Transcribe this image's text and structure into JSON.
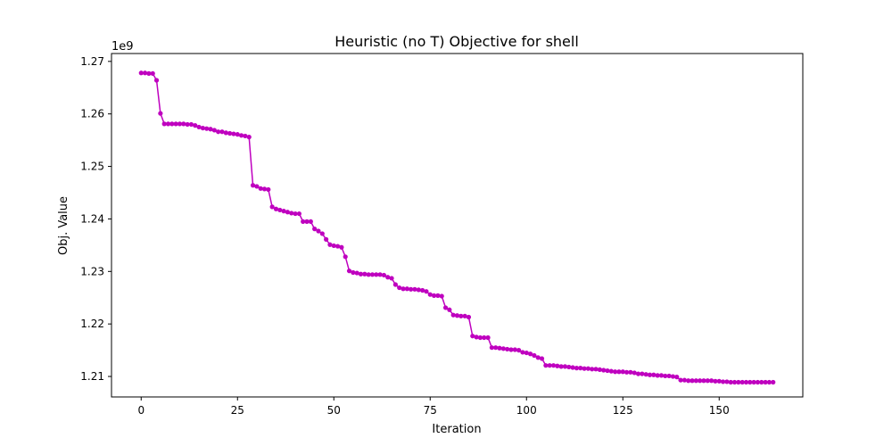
{
  "chart_data": {
    "type": "line",
    "title": "Heuristic (no T) Objective for shell",
    "xlabel": "Iteration",
    "ylabel": "Obj. Value",
    "offset_text": "1e9",
    "xlim": [
      -7.7,
      171.7
    ],
    "ylim": [
      1.2061,
      1.2715
    ],
    "xticks": [
      0,
      25,
      50,
      75,
      100,
      125,
      150
    ],
    "xtick_labels": [
      "0",
      "25",
      "50",
      "75",
      "100",
      "125",
      "150"
    ],
    "yticks": [
      1.21,
      1.22,
      1.23,
      1.24,
      1.25,
      1.26,
      1.27
    ],
    "ytick_labels": [
      "1.21",
      "1.22",
      "1.23",
      "1.24",
      "1.25",
      "1.26",
      "1.27"
    ],
    "grid": false,
    "color": "#bf00bf",
    "marker": "circle",
    "series": [
      {
        "values": [
          1.2678,
          1.2678,
          1.2677,
          1.2677,
          1.2664,
          1.2601,
          1.2581,
          1.2581,
          1.2581,
          1.2581,
          1.2581,
          1.2581,
          1.258,
          1.258,
          1.2578,
          1.2575,
          1.2573,
          1.2572,
          1.2571,
          1.2569,
          1.2566,
          1.2566,
          1.2564,
          1.2563,
          1.2562,
          1.2561,
          1.2559,
          1.2558,
          1.2556,
          1.2464,
          1.2462,
          1.2458,
          1.2457,
          1.2456,
          1.2423,
          1.2419,
          1.2417,
          1.2415,
          1.2413,
          1.2411,
          1.241,
          1.241,
          1.2395,
          1.2395,
          1.2395,
          1.2381,
          1.2377,
          1.2372,
          1.2361,
          1.2351,
          1.2349,
          1.2348,
          1.2346,
          1.2328,
          1.2301,
          1.2298,
          1.2297,
          1.2295,
          1.2295,
          1.2294,
          1.2294,
          1.2294,
          1.2294,
          1.2293,
          1.2289,
          1.2287,
          1.2275,
          1.2269,
          1.2267,
          1.2267,
          1.2266,
          1.2266,
          1.2265,
          1.2264,
          1.2262,
          1.2256,
          1.2254,
          1.2254,
          1.2253,
          1.2231,
          1.2227,
          1.2217,
          1.2216,
          1.2215,
          1.2215,
          1.2213,
          1.2177,
          1.2175,
          1.2174,
          1.2174,
          1.2174,
          1.2155,
          1.2155,
          1.2154,
          1.2153,
          1.2152,
          1.2151,
          1.2151,
          1.215,
          1.2146,
          1.2145,
          1.2143,
          1.214,
          1.2136,
          1.2134,
          1.2121,
          1.2121,
          1.2121,
          1.212,
          1.2119,
          1.2119,
          1.2118,
          1.2117,
          1.2116,
          1.2116,
          1.2115,
          1.2115,
          1.2114,
          1.2114,
          1.2113,
          1.2112,
          1.2111,
          1.211,
          1.2109,
          1.2109,
          1.2109,
          1.2108,
          1.2108,
          1.2107,
          1.2105,
          1.2105,
          1.2104,
          1.2103,
          1.2103,
          1.2102,
          1.2102,
          1.2101,
          1.2101,
          1.21,
          1.2099,
          1.2093,
          1.2093,
          1.2092,
          1.2092,
          1.2092,
          1.2092,
          1.2092,
          1.2092,
          1.2092,
          1.2091,
          1.2091,
          1.209,
          1.209,
          1.2089,
          1.2089,
          1.2089,
          1.2089,
          1.2089,
          1.2089,
          1.2089,
          1.2089,
          1.2089,
          1.2089,
          1.2089,
          1.2089
        ]
      }
    ]
  }
}
